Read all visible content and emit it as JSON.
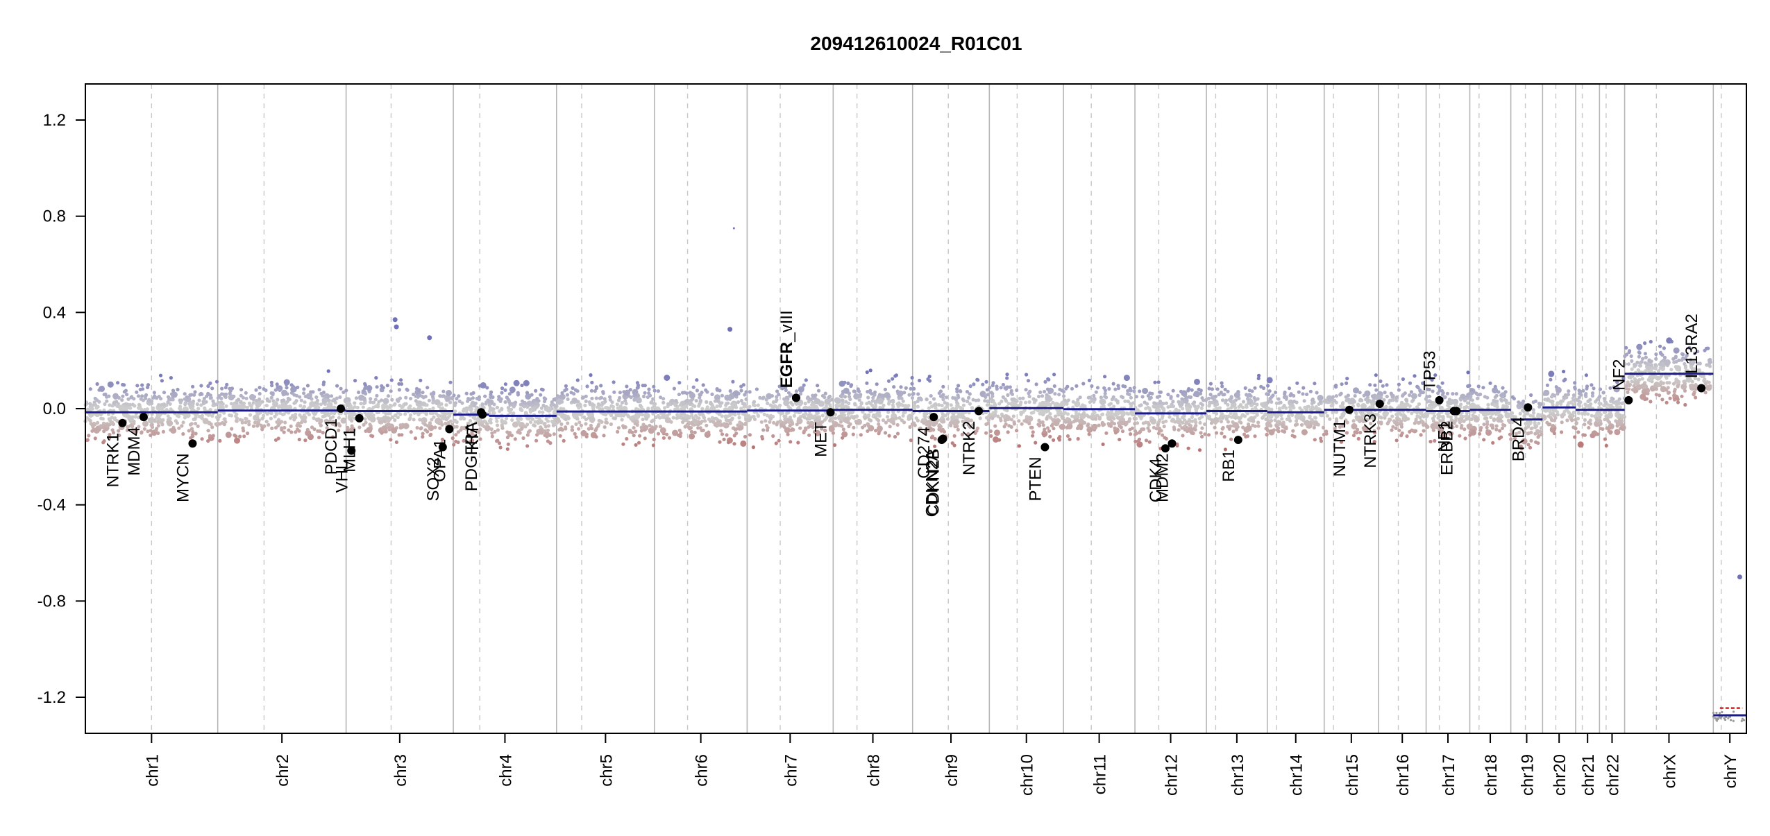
{
  "chart_data": {
    "type": "scatter",
    "title": "209412610024_R01C01",
    "xlabel": "",
    "ylabel": "",
    "ylim": [
      -1.35,
      1.35
    ],
    "y_ticks": [
      "1.2",
      "0.8",
      "0.4",
      "0.0",
      "-0.4",
      "-0.8",
      "-1.2"
    ],
    "y_tick_values": [
      1.2,
      0.8,
      0.4,
      0.0,
      -0.4,
      -0.8,
      -1.2
    ],
    "chromosomes": [
      {
        "name": "chr1",
        "start": 0,
        "end": 1.0,
        "centromere": 0.5
      },
      {
        "name": "chr2",
        "start": 1.0,
        "end": 1.97,
        "centromere": 1.35
      },
      {
        "name": "chr3",
        "start": 1.97,
        "end": 2.78,
        "centromere": 2.31
      },
      {
        "name": "chr4",
        "start": 2.78,
        "end": 3.56,
        "centromere": 2.98
      },
      {
        "name": "chr5",
        "start": 3.56,
        "end": 4.3,
        "centromere": 3.75
      },
      {
        "name": "chr6",
        "start": 4.3,
        "end": 5.0,
        "centromere": 4.55
      },
      {
        "name": "chr7",
        "start": 5.0,
        "end": 5.65,
        "centromere": 5.25
      },
      {
        "name": "chr8",
        "start": 5.65,
        "end": 6.25,
        "centromere": 5.83
      },
      {
        "name": "chr9",
        "start": 6.25,
        "end": 6.83,
        "centromere": 6.52
      },
      {
        "name": "chr10",
        "start": 6.83,
        "end": 7.39,
        "centromere": 7.04
      },
      {
        "name": "chr11",
        "start": 7.39,
        "end": 7.93,
        "centromere": 7.6
      },
      {
        "name": "chr12",
        "start": 7.93,
        "end": 8.47,
        "centromere": 8.11
      },
      {
        "name": "chr13",
        "start": 8.47,
        "end": 8.93,
        "centromere": 8.54
      },
      {
        "name": "chr14",
        "start": 8.93,
        "end": 9.36,
        "centromere": 9.0
      },
      {
        "name": "chr15",
        "start": 9.36,
        "end": 9.77,
        "centromere": 9.43
      },
      {
        "name": "chr16",
        "start": 9.77,
        "end": 10.13,
        "centromere": 9.92
      },
      {
        "name": "chr17",
        "start": 10.13,
        "end": 10.46,
        "centromere": 10.23
      },
      {
        "name": "chr18",
        "start": 10.46,
        "end": 10.77,
        "centromere": 10.53
      },
      {
        "name": "chr19",
        "start": 10.77,
        "end": 11.01,
        "centromere": 10.88
      },
      {
        "name": "chr20",
        "start": 11.01,
        "end": 11.26,
        "centromere": 11.11
      },
      {
        "name": "chr21",
        "start": 11.26,
        "end": 11.44,
        "centromere": 11.31
      },
      {
        "name": "chr22",
        "start": 11.44,
        "end": 11.63,
        "centromere": 11.49
      },
      {
        "name": "chrX",
        "start": 11.63,
        "end": 12.3,
        "centromere": 11.87
      },
      {
        "name": "chrY",
        "start": 12.3,
        "end": 12.55,
        "centromere": 12.36
      }
    ],
    "segments": [
      {
        "x0": 0.0,
        "x1": 0.5,
        "y": -0.015
      },
      {
        "x0": 0.5,
        "x1": 1.0,
        "y": -0.015
      },
      {
        "x0": 1.0,
        "x1": 1.97,
        "y": -0.008
      },
      {
        "x0": 1.97,
        "x1": 2.78,
        "y": -0.01
      },
      {
        "x0": 2.78,
        "x1": 3.05,
        "y": -0.025
      },
      {
        "x0": 3.05,
        "x1": 3.56,
        "y": -0.03
      },
      {
        "x0": 3.56,
        "x1": 5.0,
        "y": -0.012
      },
      {
        "x0": 5.0,
        "x1": 5.65,
        "y": -0.008
      },
      {
        "x0": 5.65,
        "x1": 6.25,
        "y": -0.005
      },
      {
        "x0": 6.25,
        "x1": 6.83,
        "y": -0.01
      },
      {
        "x0": 6.83,
        "x1": 7.39,
        "y": 0.002
      },
      {
        "x0": 7.39,
        "x1": 7.93,
        "y": -0.002
      },
      {
        "x0": 7.93,
        "x1": 8.47,
        "y": -0.02
      },
      {
        "x0": 8.47,
        "x1": 8.93,
        "y": -0.01
      },
      {
        "x0": 8.93,
        "x1": 9.36,
        "y": -0.015
      },
      {
        "x0": 9.36,
        "x1": 9.77,
        "y": -0.005
      },
      {
        "x0": 9.77,
        "x1": 10.13,
        "y": -0.005
      },
      {
        "x0": 10.13,
        "x1": 10.46,
        "y": -0.01
      },
      {
        "x0": 10.46,
        "x1": 10.77,
        "y": -0.005
      },
      {
        "x0": 10.77,
        "x1": 11.01,
        "y": -0.045
      },
      {
        "x0": 11.01,
        "x1": 11.26,
        "y": 0.005
      },
      {
        "x0": 11.26,
        "x1": 11.44,
        "y": -0.005
      },
      {
        "x0": 11.44,
        "x1": 11.63,
        "y": -0.005
      },
      {
        "x0": 11.63,
        "x1": 12.3,
        "y": 0.145
      },
      {
        "x0": 12.3,
        "x1": 12.55,
        "y": -1.275
      }
    ],
    "genes": [
      {
        "name": "NTRK1",
        "x": 0.28,
        "y": -0.06
      },
      {
        "name": "MDM4",
        "x": 0.44,
        "y": -0.035
      },
      {
        "name": "MYCN",
        "x": 0.81,
        "y": -0.145
      },
      {
        "name": "PDCD1",
        "x": 1.93,
        "y": 0.0
      },
      {
        "name": "VHL",
        "x": 2.01,
        "y": -0.175
      },
      {
        "name": "MLH1",
        "x": 2.07,
        "y": -0.04
      },
      {
        "name": "SOX2",
        "x": 2.7,
        "y": -0.16
      },
      {
        "name": "OPA1",
        "x": 2.75,
        "y": -0.085
      },
      {
        "name": "PDGFRA",
        "x": 2.99,
        "y": -0.015
      },
      {
        "name": "KIT",
        "x": 3.0,
        "y": -0.025
      },
      {
        "name": "EGFR",
        "x": 5.37,
        "y": 0.045
      },
      {
        "name": "EGFR_vIII",
        "x": 5.37,
        "y": 0.045
      },
      {
        "name": "MET",
        "x": 5.63,
        "y": -0.015
      },
      {
        "name": "CD274",
        "x": 6.41,
        "y": -0.035
      },
      {
        "name": "CDKN2A",
        "x": 6.47,
        "y": -0.13
      },
      {
        "name": "CDKN2B",
        "x": 6.48,
        "y": -0.125
      },
      {
        "name": "NTRK2",
        "x": 6.75,
        "y": -0.01
      },
      {
        "name": "PTEN",
        "x": 7.25,
        "y": -0.16
      },
      {
        "name": "CDK4",
        "x": 8.16,
        "y": -0.165
      },
      {
        "name": "MDM2",
        "x": 8.21,
        "y": -0.145
      },
      {
        "name": "RB1",
        "x": 8.71,
        "y": -0.13
      },
      {
        "name": "NUTM1",
        "x": 9.55,
        "y": -0.005
      },
      {
        "name": "NTRK3",
        "x": 9.78,
        "y": 0.02
      },
      {
        "name": "TP53",
        "x": 10.23,
        "y": 0.035
      },
      {
        "name": "NF1",
        "x": 10.34,
        "y": -0.01
      },
      {
        "name": "ERBB2",
        "x": 10.36,
        "y": -0.01
      },
      {
        "name": "BRD4",
        "x": 10.9,
        "y": 0.005
      },
      {
        "name": "NF2",
        "x": 11.66,
        "y": 0.035
      },
      {
        "name": "IL13RA2",
        "x": 12.21,
        "y": 0.085
      }
    ],
    "outliers": [
      {
        "x": 2.34,
        "y": 0.37
      },
      {
        "x": 2.35,
        "y": 0.34
      },
      {
        "x": 2.6,
        "y": 0.295
      },
      {
        "x": 4.9,
        "y": 0.75
      },
      {
        "x": 4.87,
        "y": 0.33
      },
      {
        "x": 12.5,
        "y": -0.7
      }
    ],
    "colors": {
      "gain": "#7070b8",
      "loss": "#b87070",
      "neutral": "#cccccc",
      "segment": "#1a1a8a",
      "chrY_mark": "#cc2222",
      "separator": "#b5b5b5",
      "centromere": "#c8c8c8"
    },
    "grid": false,
    "legend": "none"
  }
}
